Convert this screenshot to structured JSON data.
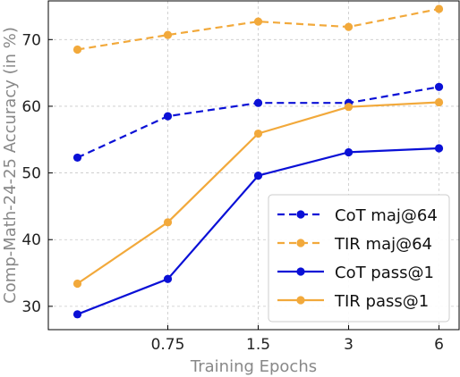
{
  "chart_data": {
    "type": "line",
    "xlabel": "Training Epochs",
    "ylabel": "Comp-Math-24-25 Accuracy (in %)",
    "x": [
      0.375,
      0.75,
      1.5,
      3,
      6
    ],
    "xticks": [
      0.75,
      1.5,
      3,
      6
    ],
    "xtick_labels": [
      "0.75",
      "1.5",
      "3",
      "6"
    ],
    "x_scale": "log2",
    "yticks": [
      30,
      40,
      50,
      60,
      70
    ],
    "ylim": [
      26.5,
      75.8
    ],
    "grid": true,
    "legend_position": "lower-right",
    "series": [
      {
        "name": "CoT maj@64",
        "color": "#0a10d6",
        "style": "dashed",
        "values": [
          52.3,
          58.5,
          60.5,
          60.5,
          62.9
        ]
      },
      {
        "name": "TIR maj@64",
        "color": "#f2a93b",
        "style": "dashed",
        "values": [
          68.5,
          70.7,
          72.7,
          71.9,
          74.6
        ]
      },
      {
        "name": "CoT pass@1",
        "color": "#0a10d6",
        "style": "solid",
        "values": [
          28.8,
          34.1,
          49.6,
          53.1,
          53.7
        ]
      },
      {
        "name": "TIR pass@1",
        "color": "#f2a93b",
        "style": "solid",
        "values": [
          33.4,
          42.6,
          55.9,
          59.9,
          60.6
        ]
      }
    ]
  }
}
